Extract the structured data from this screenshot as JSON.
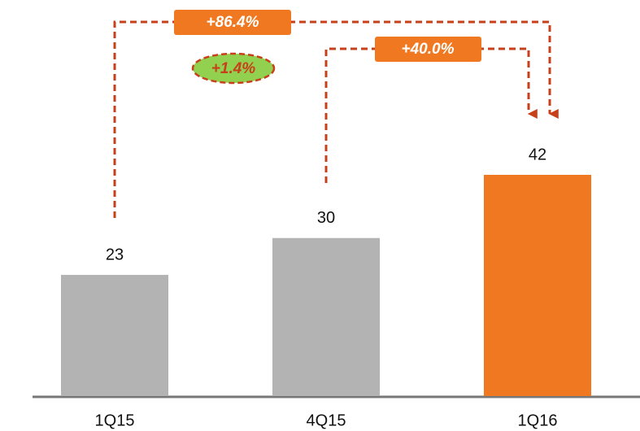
{
  "chart_data": {
    "type": "bar",
    "categories": [
      "1Q15",
      "4Q15",
      "1Q16"
    ],
    "values": [
      23,
      30,
      42
    ],
    "colors": [
      "#b3b3b3",
      "#b3b3b3",
      "#f07820"
    ],
    "annotations": [
      "+86.4%",
      "+40.0%",
      "+1.4%"
    ]
  }
}
